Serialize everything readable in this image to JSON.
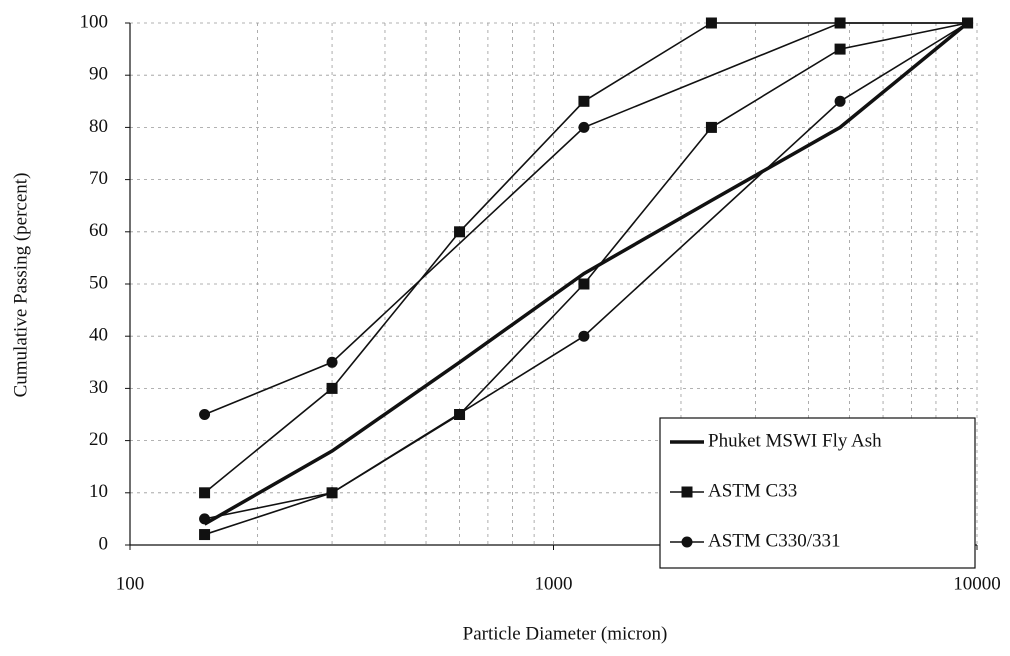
{
  "chart_data": {
    "type": "line",
    "x_label": "Particle Diameter (micron)",
    "y_label": "Cumulative Passing (percent)",
    "xlim": [
      100,
      10000
    ],
    "xticks": [
      100,
      1000,
      10000
    ],
    "log_x": true,
    "ylim": [
      0,
      100
    ],
    "yticks": [
      0,
      10,
      20,
      30,
      40,
      50,
      60,
      70,
      80,
      90,
      100
    ],
    "grid": true,
    "minor_grid": true,
    "legend": "lower right",
    "series": [
      {
        "name": "Phuket MSWI Fly Ash",
        "color": "#111111",
        "marker": "none",
        "width": 3.5,
        "limits": [
          {
            "x": [
              150,
              300,
              600,
              1180,
              2360,
              4750,
              9500
            ],
            "values": [
              4,
              18,
              35,
              52,
              66,
              80,
              100
            ]
          }
        ]
      },
      {
        "name": "ASTM C33",
        "color": "#111111",
        "marker": "square",
        "width": 1.6,
        "limits": [
          {
            "x": [
              150,
              300,
              600,
              1180,
              2360,
              4750,
              9500
            ],
            "values": [
              10,
              30,
              60,
              85,
              100,
              100,
              100
            ]
          },
          {
            "x": [
              150,
              300,
              600,
              1180,
              2360,
              4750,
              9500
            ],
            "values": [
              2,
              10,
              25,
              50,
              80,
              95,
              100
            ]
          }
        ]
      },
      {
        "name": "ASTM C330/331",
        "color": "#111111",
        "marker": "circle",
        "width": 1.6,
        "limits": [
          {
            "x": [
              150,
              300,
              1180,
              4750,
              9500
            ],
            "values": [
              25,
              35,
              80,
              100,
              100
            ]
          },
          {
            "x": [
              150,
              300,
              1180,
              4750,
              9500
            ],
            "values": [
              5,
              10,
              40,
              85,
              100
            ]
          }
        ]
      }
    ]
  }
}
